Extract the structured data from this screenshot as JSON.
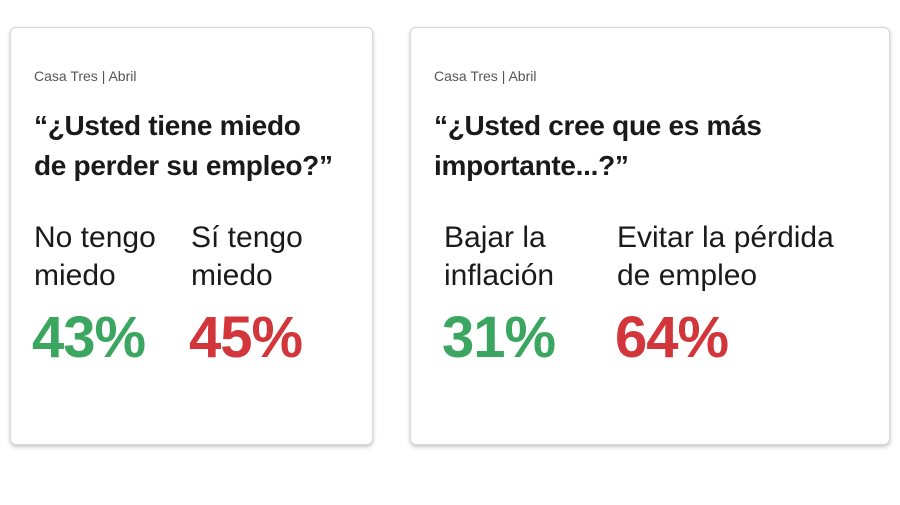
{
  "colors": {
    "positive": "#3aa660",
    "negative": "#d2353a"
  },
  "cards": [
    {
      "source": "Casa Tres | Abril",
      "question_line1": "“¿Usted tiene miedo",
      "question_line2": "de perder su empleo?”",
      "options": [
        {
          "label_line1": "No tengo",
          "label_line2": "miedo",
          "value": "43%"
        },
        {
          "label_line1": "Sí tengo",
          "label_line2": "miedo",
          "value": "45%"
        }
      ]
    },
    {
      "source": "Casa Tres | Abril",
      "question_line1": "“¿Usted cree que es más",
      "question_line2": "importante...?”",
      "options": [
        {
          "label_line1": "Bajar la",
          "label_line2": "inflación",
          "value": "31%"
        },
        {
          "label_line1": "Evitar la pérdida",
          "label_line2": "de empleo",
          "value": "64%"
        }
      ]
    }
  ]
}
